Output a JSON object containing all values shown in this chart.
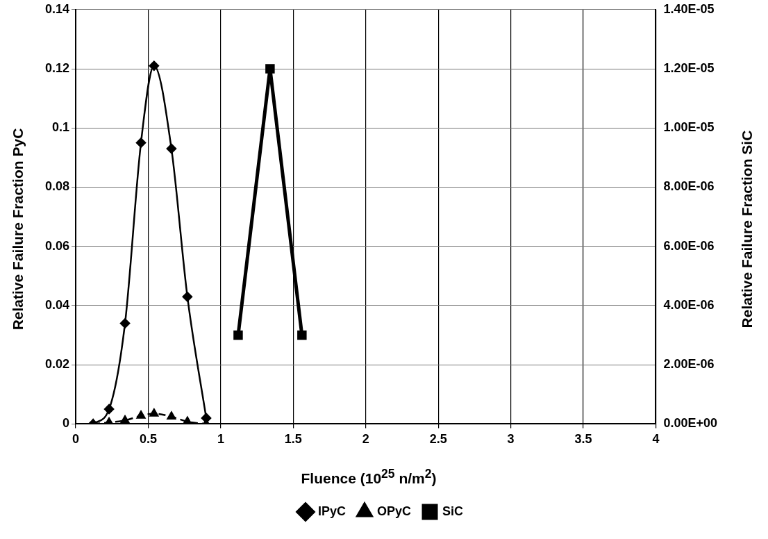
{
  "chart_data": {
    "type": "line",
    "xlabel": "Fluence (10$^{25}$ n/m$^{2}$)",
    "ylabel": "Relative Failure Fraction PyC",
    "y2label": "Relative Failure Fraction SiC",
    "series": [
      {
        "name": "IPyC",
        "color": "#000000",
        "marker": "diamond",
        "line_style": "solid",
        "x": [
          0.12,
          0.23,
          0.34,
          0.45,
          0.54,
          0.66,
          0.77,
          0.9
        ],
        "values": [
          0,
          0.005,
          0.034,
          0.095,
          0.121,
          0.093,
          0.043,
          0.002
        ]
      },
      {
        "name": "OPyC",
        "color": "#000000",
        "marker": "triangle",
        "line_style": "dashed",
        "x": [
          0.12,
          0.23,
          0.34,
          0.45,
          0.54,
          0.66,
          0.77,
          0.9
        ],
        "values": [
          0,
          0.0005,
          0.0012,
          0.0028,
          0.0035,
          0.0025,
          0.0008,
          0
        ]
      },
      {
        "name": "SiC",
        "color": "#000000",
        "marker": "square",
        "line_style": "solid",
        "axis": "y2",
        "x": [
          1.12,
          1.34,
          1.56
        ],
        "values": [
          3e-06,
          1.2e-05,
          3e-06
        ]
      }
    ],
    "xlim": [
      0,
      4
    ],
    "xticks": [
      0,
      0.5,
      1,
      1.5,
      2,
      2.5,
      3,
      3.5,
      4
    ],
    "ylim": [
      0,
      0.14
    ],
    "yticks": [
      0,
      0.02,
      0.04,
      0.06,
      0.08,
      0.1,
      0.12,
      0.14
    ],
    "y2lim": [
      0,
      1.4e-05
    ],
    "y2ticks": [
      {
        "value": 0,
        "label": "0.00E+00"
      },
      {
        "value": 2e-06,
        "label": "2.00E-06"
      },
      {
        "value": 4e-06,
        "label": "4.00E-06"
      },
      {
        "value": 6e-06,
        "label": "6.00E-06"
      },
      {
        "value": 8e-06,
        "label": "8.00E-06"
      },
      {
        "value": 1e-05,
        "label": "1.00E-05"
      },
      {
        "value": 1.2e-05,
        "label": "1.20E-05"
      },
      {
        "value": 1.4e-05,
        "label": "1.40E-05"
      }
    ],
    "grid": true,
    "legend": "bottom"
  }
}
